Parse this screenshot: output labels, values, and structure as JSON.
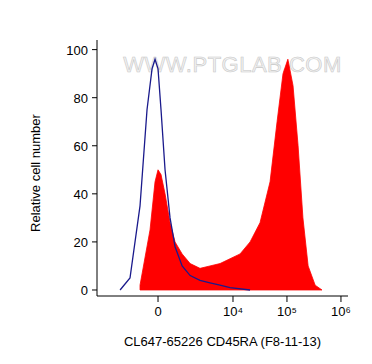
{
  "chart_data": {
    "type": "area",
    "x_label": "CL647-65226 CD45RA (F8-11-13)",
    "y_label": "Relative cell number",
    "annotations": [
      "WWW.PTGLAB.COM"
    ],
    "log": "x",
    "xlim": [
      -5500,
      1350000
    ],
    "ylim": [
      -2.5,
      104
    ],
    "xticks": [
      0,
      {
        "value": 10000,
        "label": "10⁴"
      },
      {
        "value": 100000,
        "label": "10⁵"
      },
      {
        "value": 1000000,
        "label": "10⁶"
      }
    ],
    "yticks": [
      0,
      20,
      40,
      60,
      80,
      100
    ],
    "series": [
      {
        "type": "area",
        "color": "#ff0000",
        "x": [
          -693,
          -285,
          -105,
          0,
          105,
          249,
          439,
          649,
          999,
          1509,
          2386,
          3715,
          5740,
          8815,
          13530,
          20750,
          31730,
          48630,
          65600,
          84500,
          104000,
          129600,
          160700,
          197600,
          246800,
          333000,
          445000
        ],
        "values": [
          2,
          25,
          45,
          50,
          48,
          40,
          28,
          20,
          15,
          11,
          9,
          10,
          11,
          13,
          15,
          20,
          28,
          45,
          70,
          90,
          96,
          85,
          60,
          30,
          10,
          2,
          0
        ]
      },
      {
        "type": "line",
        "color": "#1a1a8c",
        "x": [
          -1985,
          -1230,
          -693,
          -399,
          -212,
          -105,
          0,
          105,
          249,
          439,
          649,
          999,
          1509,
          2386,
          3715,
          5740,
          8815,
          20750
        ],
        "values": [
          0,
          5,
          35,
          75,
          92,
          96,
          92,
          75,
          50,
          30,
          18,
          10,
          6,
          4,
          3,
          2,
          1,
          0
        ]
      }
    ]
  }
}
